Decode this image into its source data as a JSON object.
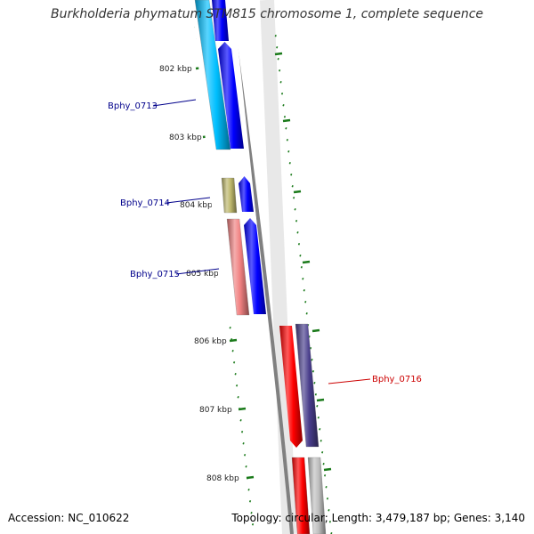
{
  "title": "Burkholderia phymatum STM815 chromosome 1, complete sequence",
  "footer": {
    "accession": "Accession: NC_010622",
    "summary": "Topology: circular; Length: 3,479,187 bp; Genes: 3,140"
  },
  "ticks": [
    "802 kbp",
    "803 kbp",
    "804 kbp",
    "805 kbp",
    "806 kbp",
    "807 kbp",
    "808 kbp"
  ],
  "gene_labels": [
    {
      "text": "Bphy_0713",
      "color": "#00008b"
    },
    {
      "text": "Bphy_0714",
      "color": "#00008b"
    },
    {
      "text": "Bphy_0715",
      "color": "#00008b"
    },
    {
      "text": "Bphy_0716",
      "color": "#cc0000"
    }
  ],
  "colors": {
    "backbone": "#808080",
    "tick": "#1a7a1a",
    "forward_cds": "#0000ff",
    "cyan_track": "#00bfff",
    "olive_track": "#bdb76b",
    "pink_track": "#f08080",
    "red_track": "#ff0000",
    "slate_track": "#483d8b",
    "gray_track": "#c0c0c0"
  }
}
